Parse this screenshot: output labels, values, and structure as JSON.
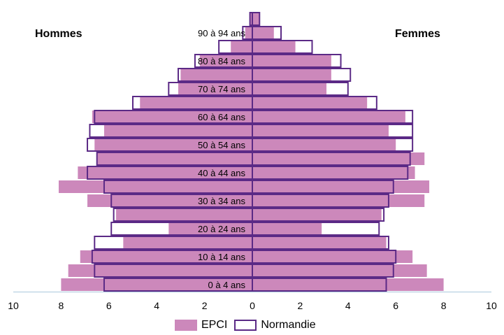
{
  "chart_data": {
    "type": "bar",
    "orientation": "horizontal-pyramid",
    "left_label": "Hommes",
    "right_label": "Femmes",
    "xlim": [
      -10,
      10
    ],
    "x_ticks": [
      "10",
      "8",
      "6",
      "4",
      "2",
      "0",
      "2",
      "4",
      "6",
      "8",
      "10"
    ],
    "categories": [
      "0 à 4 ans",
      "5 à 9 ans",
      "10 à 14 ans",
      "15 à 19 ans",
      "20 à 24 ans",
      "25 à 29 ans",
      "30 à 34 ans",
      "35 à 39 ans",
      "40 à 44 ans",
      "45 à 49 ans",
      "50 à 54 ans",
      "55 à 59 ans",
      "60 à 64 ans",
      "65 à 69 ans",
      "70 à 74 ans",
      "75 à 79 ans",
      "80 à 84 ans",
      "85 à 89 ans",
      "90 à 94 ans",
      "95 ans ou +"
    ],
    "shown_category_labels": [
      "0 à 4 ans",
      "10 à 14 ans",
      "20 à 24 ans",
      "30 à 34 ans",
      "40 à 44 ans",
      "50 à 54 ans",
      "60 à 64 ans",
      "70 à 74 ans",
      "80 à 84 ans",
      "90 à 94 ans"
    ],
    "series": [
      {
        "name": "EPCI",
        "color": "#cc88bb",
        "men": [
          8.0,
          7.7,
          7.2,
          5.4,
          3.5,
          5.7,
          6.9,
          8.1,
          7.3,
          6.5,
          6.6,
          6.2,
          6.7,
          4.7,
          3.1,
          3.0,
          2.2,
          0.9,
          0.3,
          0.1
        ],
        "women": [
          8.0,
          7.3,
          6.7,
          5.6,
          2.9,
          5.4,
          7.2,
          7.4,
          6.8,
          7.2,
          6.0,
          5.7,
          6.4,
          4.8,
          3.1,
          3.3,
          3.3,
          1.8,
          0.9,
          0.3
        ]
      },
      {
        "name": "Normandie",
        "color": "#5b2a86",
        "men": [
          6.2,
          6.6,
          6.7,
          6.6,
          5.9,
          5.8,
          5.9,
          6.2,
          6.9,
          6.5,
          6.9,
          6.8,
          6.6,
          5.0,
          3.5,
          3.1,
          2.4,
          1.4,
          0.4,
          0.1
        ],
        "women": [
          5.6,
          5.9,
          6.0,
          5.7,
          5.3,
          5.5,
          5.7,
          5.9,
          6.5,
          6.6,
          6.7,
          6.7,
          6.7,
          5.2,
          4.0,
          4.1,
          3.7,
          2.5,
          1.2,
          0.3
        ]
      }
    ]
  },
  "legend": {
    "epci": "EPCI",
    "normandie": "Normandie"
  }
}
